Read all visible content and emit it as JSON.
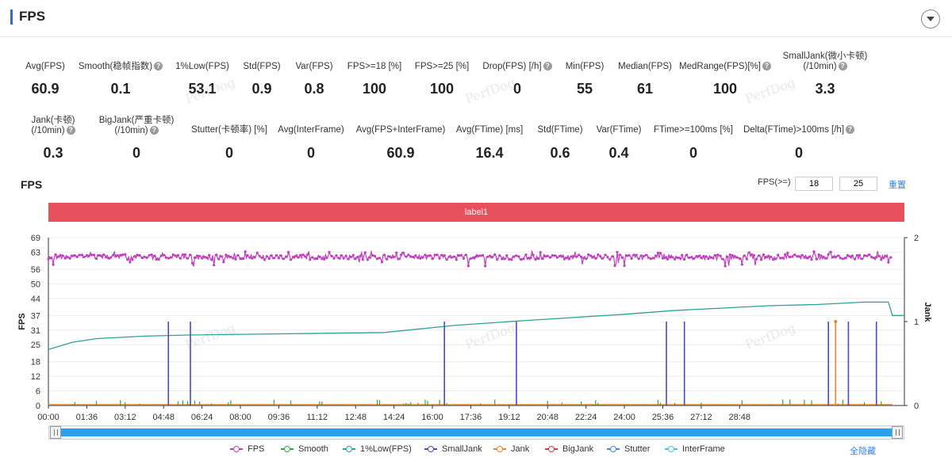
{
  "header": {
    "title": "FPS"
  },
  "metrics_row1": [
    {
      "label": "Avg(FPS)",
      "value": "60.9",
      "help": false
    },
    {
      "label": "Smooth(稳帧指数)",
      "value": "0.1",
      "help": true
    },
    {
      "label": "1%Low(FPS)",
      "value": "53.1",
      "help": false
    },
    {
      "label": "Std(FPS)",
      "value": "0.9",
      "help": false
    },
    {
      "label": "Var(FPS)",
      "value": "0.8",
      "help": false
    },
    {
      "label": "FPS>=18 [%]",
      "value": "100",
      "help": false
    },
    {
      "label": "FPS>=25 [%]",
      "value": "100",
      "help": false
    },
    {
      "label": "Drop(FPS) [/h]",
      "value": "0",
      "help": true
    },
    {
      "label": "Min(FPS)",
      "value": "55",
      "help": false
    },
    {
      "label": "Median(FPS)",
      "value": "61",
      "help": false
    },
    {
      "label": "MedRange(FPS)[%]",
      "value": "100",
      "help": true
    },
    {
      "label": "SmallJank(微小卡顿)",
      "label2": "(/10min)",
      "value": "3.3",
      "help": true
    }
  ],
  "metrics_row2": [
    {
      "label": "Jank(卡顿)",
      "label2": "(/10min)",
      "value": "0.3",
      "help": true
    },
    {
      "label": "BigJank(严重卡顿)",
      "label2": "(/10min)",
      "value": "0",
      "help": true
    },
    {
      "label": "Stutter(卡顿率) [%]",
      "value": "0",
      "help": false
    },
    {
      "label": "Avg(InterFrame)",
      "value": "0",
      "help": false
    },
    {
      "label": "Avg(FPS+InterFrame)",
      "value": "60.9",
      "help": false
    },
    {
      "label": "Avg(FTime) [ms]",
      "value": "16.4",
      "help": false
    },
    {
      "label": "Std(FTime)",
      "value": "0.6",
      "help": false
    },
    {
      "label": "Var(FTime)",
      "value": "0.4",
      "help": false
    },
    {
      "label": "FTime>=100ms [%]",
      "value": "0",
      "help": false
    },
    {
      "label": "Delta(FTime)>100ms [/h]",
      "value": "0",
      "help": true
    }
  ],
  "controls": {
    "fps_label": "FPS(>=)",
    "threshold1": "18",
    "threshold2": "25",
    "reset_label": "重置",
    "hide_all_label": "全隐藏"
  },
  "watermark": "PerfDog",
  "chart_data": {
    "type": "line",
    "title": "FPS",
    "band_label": "label1",
    "ylabel": "FPS",
    "ylabel_right": "Jank",
    "y_ticks": [
      0,
      6,
      12,
      18,
      25,
      31,
      37,
      44,
      50,
      56,
      63,
      69
    ],
    "y_right_ticks": [
      0,
      1,
      2
    ],
    "ylim": [
      0,
      69
    ],
    "ylim_right": [
      0,
      2
    ],
    "x_ticks": [
      "00:00",
      "01:36",
      "03:12",
      "04:48",
      "06:24",
      "08:00",
      "09:36",
      "11:12",
      "12:48",
      "14:24",
      "16:00",
      "17:36",
      "19:12",
      "20:48",
      "22:24",
      "24:00",
      "25:36",
      "27:12",
      "28:48"
    ],
    "x_range_seconds": [
      0,
      1800
    ],
    "grid": true,
    "legend_position": "bottom",
    "series": [
      {
        "name": "FPS",
        "color": "#c040c0",
        "typical_value": 61,
        "range": [
          55,
          63
        ]
      },
      {
        "name": "Smooth",
        "color": "#2eaa3c",
        "typical_value": 0.5
      },
      {
        "name": "1%Low(FPS)",
        "color": "#2ba39b",
        "points": [
          [
            0,
            23
          ],
          [
            60,
            26
          ],
          [
            120,
            27.5
          ],
          [
            240,
            28.5
          ],
          [
            360,
            29
          ],
          [
            600,
            29.5
          ],
          [
            840,
            30
          ],
          [
            1020,
            33
          ],
          [
            1200,
            35
          ],
          [
            1440,
            37.5
          ],
          [
            1560,
            39
          ],
          [
            1680,
            40
          ],
          [
            1800,
            41
          ],
          [
            1920,
            41.5
          ],
          [
            1980,
            42
          ],
          [
            2040,
            42.5
          ],
          [
            2100,
            42.5
          ],
          [
            2110,
            37
          ],
          [
            2140,
            37
          ]
        ]
      },
      {
        "name": "SmallJank",
        "color": "#4848c8",
        "axis": "right",
        "spikes_seconds": [
          300,
          355,
          990,
          1170,
          1545,
          1590,
          1950,
          2000,
          2070
        ]
      },
      {
        "name": "Jank",
        "color": "#f0802a",
        "axis": "right",
        "spikes_seconds": [
          1968
        ]
      },
      {
        "name": "BigJank",
        "color": "#d63b3b",
        "axis": "right",
        "spikes_seconds": []
      },
      {
        "name": "Stutter",
        "color": "#3a8be8",
        "spikes_seconds": []
      },
      {
        "name": "InterFrame",
        "color": "#3cc8e0",
        "spikes_seconds": []
      }
    ]
  }
}
